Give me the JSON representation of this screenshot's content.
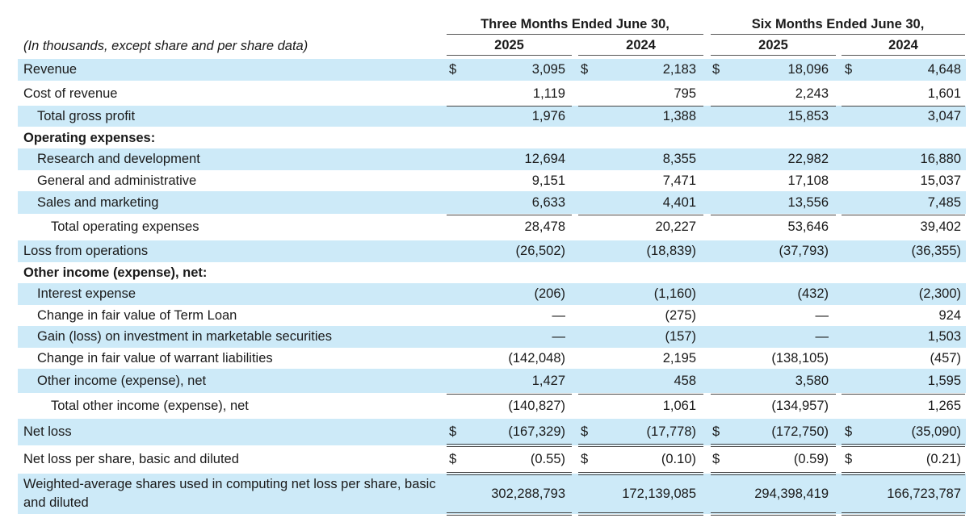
{
  "header": {
    "three_months": "Three Months Ended June 30,",
    "six_months": "Six Months Ended June 30,",
    "years": [
      "2025",
      "2024",
      "2025",
      "2024"
    ],
    "note": "(In thousands, except share and per share data)"
  },
  "currency_symbol": "$",
  "rows": [
    {
      "label": "Revenue",
      "indent": 0,
      "shaded": true,
      "dollar": true,
      "values": [
        "3,095",
        "2,183",
        "18,096",
        "4,648"
      ]
    },
    {
      "label": "Cost of revenue",
      "indent": 0,
      "shaded": false,
      "values": [
        "1,119",
        "795",
        "2,243",
        "1,601"
      ]
    },
    {
      "label": "Total gross profit",
      "indent": 1,
      "shaded": true,
      "values": [
        "1,976",
        "1,388",
        "15,853",
        "3,047"
      ]
    },
    {
      "label": "Operating expenses:",
      "indent": 0,
      "bold": true,
      "shaded": false,
      "values": [
        "",
        "",
        "",
        ""
      ]
    },
    {
      "label": "Research and development",
      "indent": 1,
      "shaded": true,
      "values": [
        "12,694",
        "8,355",
        "22,982",
        "16,880"
      ]
    },
    {
      "label": "General and administrative",
      "indent": 1,
      "shaded": false,
      "values": [
        "9,151",
        "7,471",
        "17,108",
        "15,037"
      ]
    },
    {
      "label": "Sales and marketing",
      "indent": 1,
      "shaded": true,
      "values": [
        "6,633",
        "4,401",
        "13,556",
        "7,485"
      ]
    },
    {
      "label": "Total operating expenses",
      "indent": 2,
      "shaded": false,
      "values": [
        "28,478",
        "20,227",
        "53,646",
        "39,402"
      ]
    },
    {
      "label": "Loss from operations",
      "indent": 0,
      "shaded": true,
      "values": [
        "(26,502)",
        "(18,839)",
        "(37,793)",
        "(36,355)"
      ]
    },
    {
      "label": "Other income (expense), net:",
      "indent": 0,
      "bold": true,
      "shaded": false,
      "values": [
        "",
        "",
        "",
        ""
      ]
    },
    {
      "label": "Interest expense",
      "indent": 1,
      "shaded": true,
      "values": [
        "(206)",
        "(1,160)",
        "(432)",
        "(2,300)"
      ]
    },
    {
      "label": "Change in fair value of Term Loan",
      "indent": 1,
      "shaded": false,
      "values": [
        "—",
        "(275)",
        "—",
        "924"
      ]
    },
    {
      "label": "Gain (loss) on investment in marketable securities",
      "indent": 1,
      "shaded": true,
      "values": [
        "—",
        "(157)",
        "—",
        "1,503"
      ]
    },
    {
      "label": "Change in fair value of warrant liabilities",
      "indent": 1,
      "shaded": false,
      "values": [
        "(142,048)",
        "2,195",
        "(138,105)",
        "(457)"
      ]
    },
    {
      "label": "Other income (expense), net",
      "indent": 1,
      "shaded": true,
      "values": [
        "1,427",
        "458",
        "3,580",
        "1,595"
      ]
    },
    {
      "label": "Total other income (expense), net",
      "indent": 2,
      "shaded": false,
      "values": [
        "(140,827)",
        "1,061",
        "(134,957)",
        "1,265"
      ]
    },
    {
      "label": "Net loss",
      "indent": 0,
      "shaded": true,
      "dollar": true,
      "values": [
        "(167,329)",
        "(17,778)",
        "(172,750)",
        "(35,090)"
      ]
    },
    {
      "label": "Net loss per share, basic and diluted",
      "indent": 0,
      "shaded": false,
      "dollar": true,
      "values": [
        "(0.55)",
        "(0.10)",
        "(0.59)",
        "(0.21)"
      ]
    },
    {
      "label": "Weighted-average shares used in computing net loss per share, basic and diluted",
      "indent": 0,
      "shaded": true,
      "wrap": true,
      "values": [
        "302,288,793",
        "172,139,085",
        "294,398,419",
        "166,723,787"
      ]
    }
  ]
}
